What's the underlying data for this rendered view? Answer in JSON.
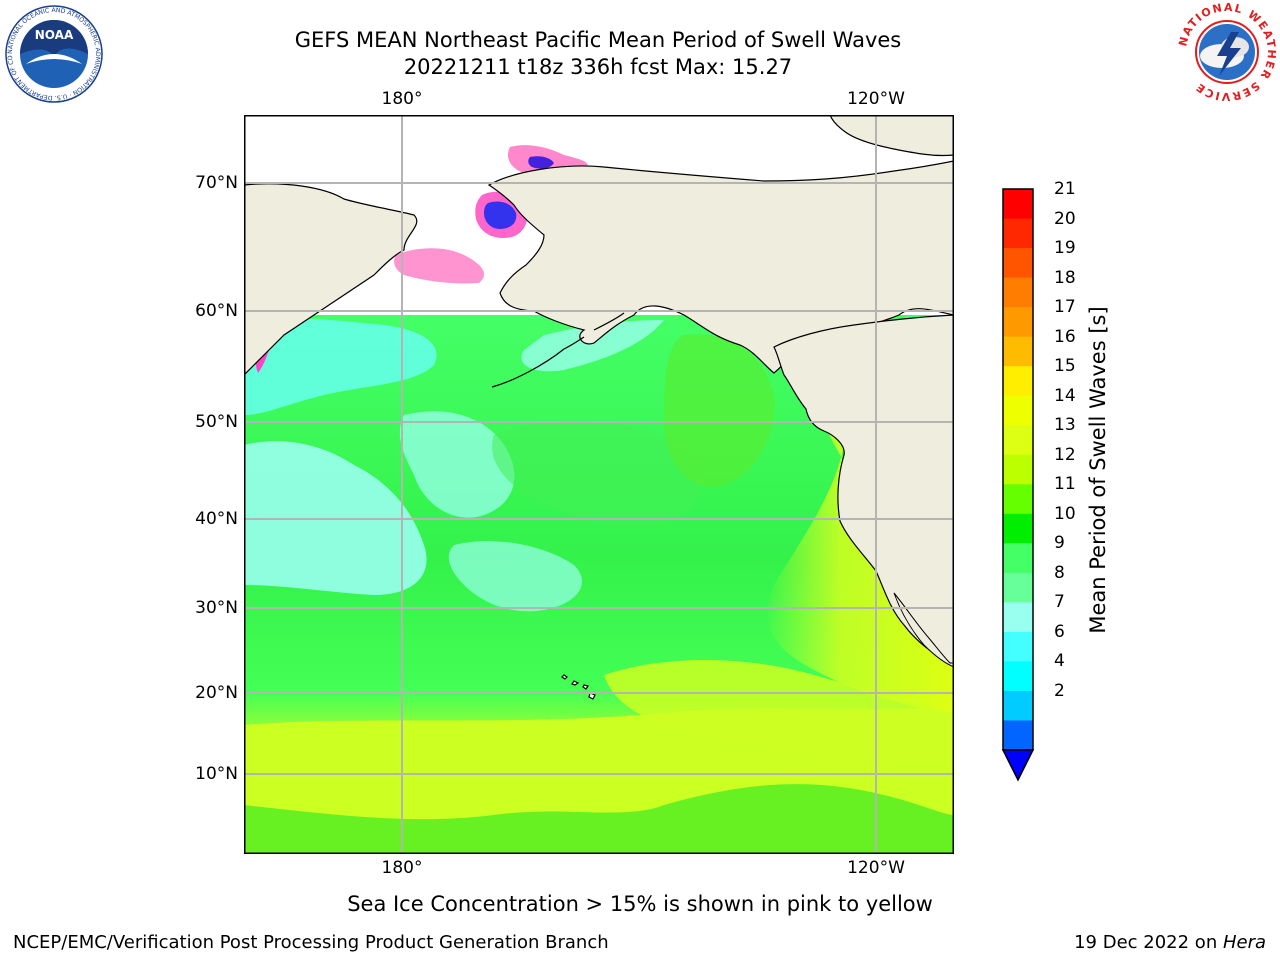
{
  "title": {
    "line1": "GEFS MEAN Northeast Pacific Mean Period of Swell Waves",
    "line2": "20221211 t18z 336h fcst   Max: 15.27"
  },
  "map": {
    "x_ticks": [
      "180°",
      "120°W"
    ],
    "y_ticks": [
      "70°N",
      "60°N",
      "50°N",
      "40°N",
      "30°N",
      "20°N",
      "10°N"
    ],
    "colors": {
      "land": "#efedde",
      "grid": "#b4b4b4",
      "coast": "#000000"
    }
  },
  "colorbar": {
    "label": "Mean Period of Swell Waves [s]",
    "ticks": [
      "21",
      "20",
      "19",
      "18",
      "17",
      "16",
      "15",
      "14",
      "13",
      "12",
      "11",
      "10",
      "9",
      "8",
      "7",
      "6",
      "4",
      "2"
    ],
    "colors_top_to_bottom": [
      "#ff0000",
      "#ff2800",
      "#ff5500",
      "#ff7d00",
      "#ff9900",
      "#ffbb00",
      "#ffee00",
      "#eeff00",
      "#ddff11",
      "#bbff00",
      "#66ff00",
      "#00ee00",
      "#44ff66",
      "#66ff99",
      "#99ffee",
      "#44ffff",
      "#00ffff",
      "#00ccff",
      "#0066ff",
      "#0000ff"
    ]
  },
  "note": "Sea Ice Concentration > 15% is shown in pink to yellow",
  "footer": {
    "left": "NCEP/EMC/Verification Post Processing Product Generation Branch",
    "right_prefix": "19 Dec 2022 on ",
    "right_machine": "Hera"
  },
  "logos": {
    "noaa_text": "NOAA",
    "noaa_ring": "NATIONAL OCEANIC AND ATMOSPHERIC ADMINISTRATION · U.S. DEPARTMENT OF COMMERCE ·",
    "nws_ring": "NATIONAL WEATHER SERVICE"
  }
}
